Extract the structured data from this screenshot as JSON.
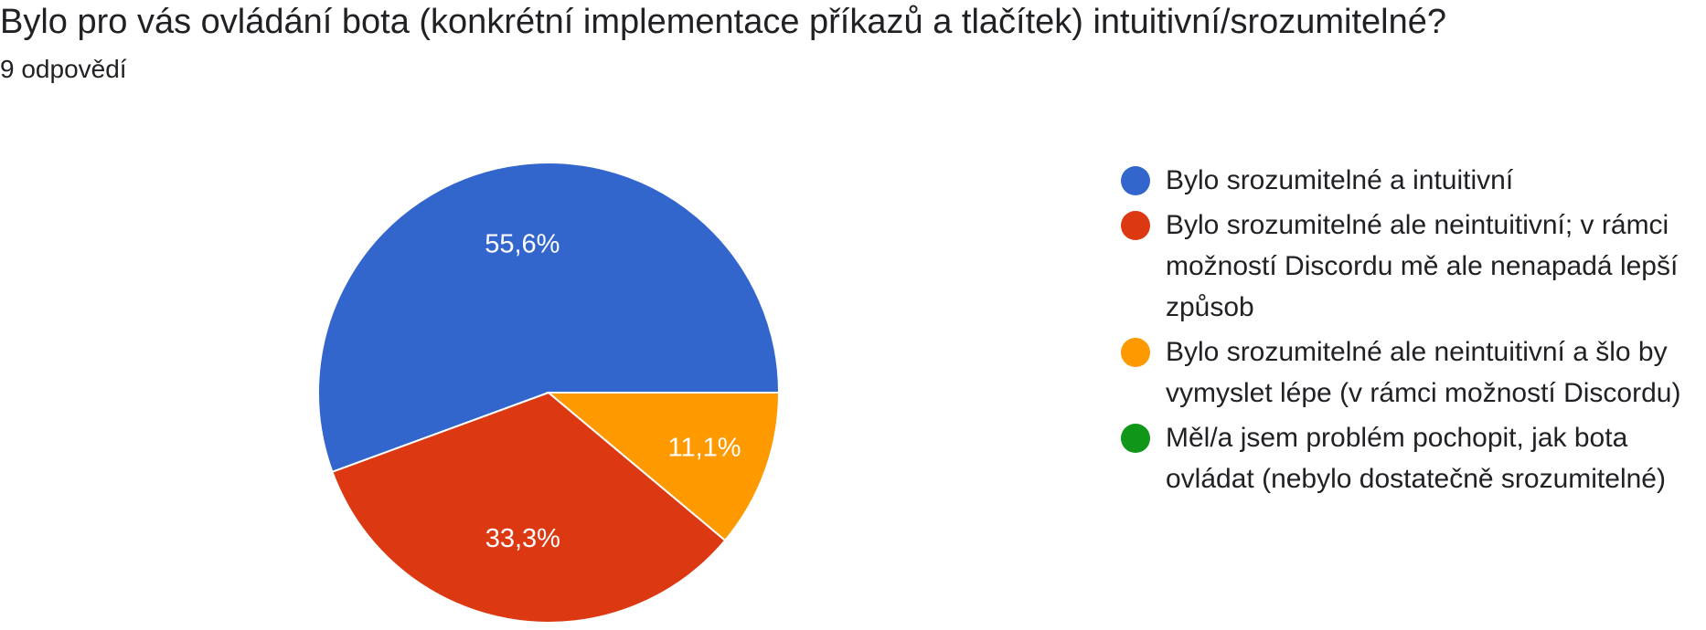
{
  "header": {
    "title": "Bylo pro vás ovládání bota (konkrétní implementace příkazů a tlačítek) intuitivní/srozumitelné?",
    "subtitle": "9 odpovědí"
  },
  "chart_data": {
    "type": "pie",
    "title": "Bylo pro vás ovládání bota (konkrétní implementace příkazů a tlačítek) intuitivní/srozumitelné?",
    "legend_placement": "right",
    "slices": [
      {
        "name": "Bylo srozumitelné a intuitivní",
        "value": 55.6,
        "label": "55,6%",
        "color": "#3366cc"
      },
      {
        "name": "Bylo srozumitelné ale neintuitivní; v rámci možností Discordu mě ale nenapadá lepší způsob",
        "value": 33.3,
        "label": "33,3%",
        "color": "#dc3912"
      },
      {
        "name": "Bylo srozumitelné ale neintuitivní a šlo by vymyslet lépe (v rámci možností Discordu)",
        "value": 11.1,
        "label": "11,1%",
        "color": "#ff9900"
      },
      {
        "name": "Měl/a jsem problém pochopit, jak bota ovládat (nebylo dostatečně srozumitelné)",
        "value": 0,
        "label": "",
        "color": "#109618"
      }
    ]
  }
}
